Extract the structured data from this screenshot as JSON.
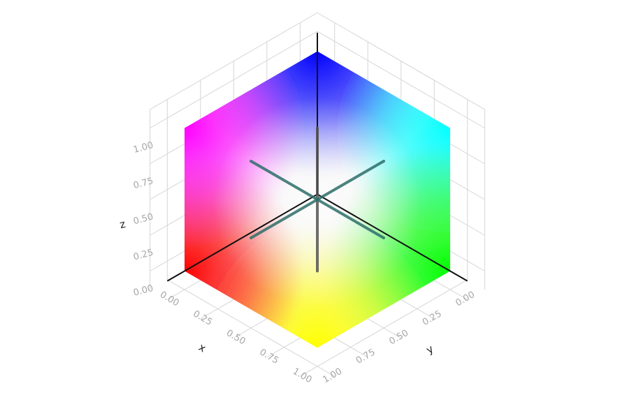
{
  "chart_data": {
    "type": "scatter3d",
    "description_none": "",
    "axes": {
      "x": {
        "label": "x",
        "range": [
          0,
          1
        ],
        "ticks": [
          0.0,
          0.25,
          0.5,
          0.75,
          1.0
        ],
        "tick_labels": [
          "0.00",
          "0.25",
          "0.50",
          "0.75",
          "1.00"
        ]
      },
      "y": {
        "label": "y",
        "range": [
          0,
          1
        ],
        "ticks": [
          0.0,
          0.25,
          0.5,
          0.75,
          1.0
        ],
        "tick_labels": [
          "0.00",
          "0.25",
          "0.50",
          "0.75",
          "1.00"
        ]
      },
      "z": {
        "label": "z",
        "range": [
          0,
          1
        ],
        "ticks": [
          0.0,
          0.25,
          0.5,
          0.75,
          1.0
        ],
        "tick_labels": [
          "0.00",
          "0.25",
          "0.50",
          "0.75",
          "1.00"
        ]
      }
    },
    "color_mapping": "rgb = (x, y, z) color cube",
    "color_cube_corners": {
      "black": "#000000",
      "red": "#ff0000",
      "green": "#00ff00",
      "blue": "#0000ff",
      "yellow": "#ffff00",
      "magenta": "#ff00ff",
      "cyan": "#00ffff",
      "white": "#ffffff"
    },
    "lines": [
      {
        "from": [
          0.5,
          0.5,
          0.0
        ],
        "to": [
          0.5,
          0.5,
          1.0
        ],
        "color": "#555555"
      },
      {
        "from": [
          0.0,
          0.5,
          0.5
        ],
        "to": [
          1.0,
          0.5,
          0.5
        ],
        "color": "#2e6f6a"
      },
      {
        "from": [
          0.5,
          0.0,
          0.5
        ],
        "to": [
          0.5,
          1.0,
          0.5
        ],
        "color": "#2e6f6a"
      }
    ],
    "grid": true,
    "legend": "none"
  }
}
